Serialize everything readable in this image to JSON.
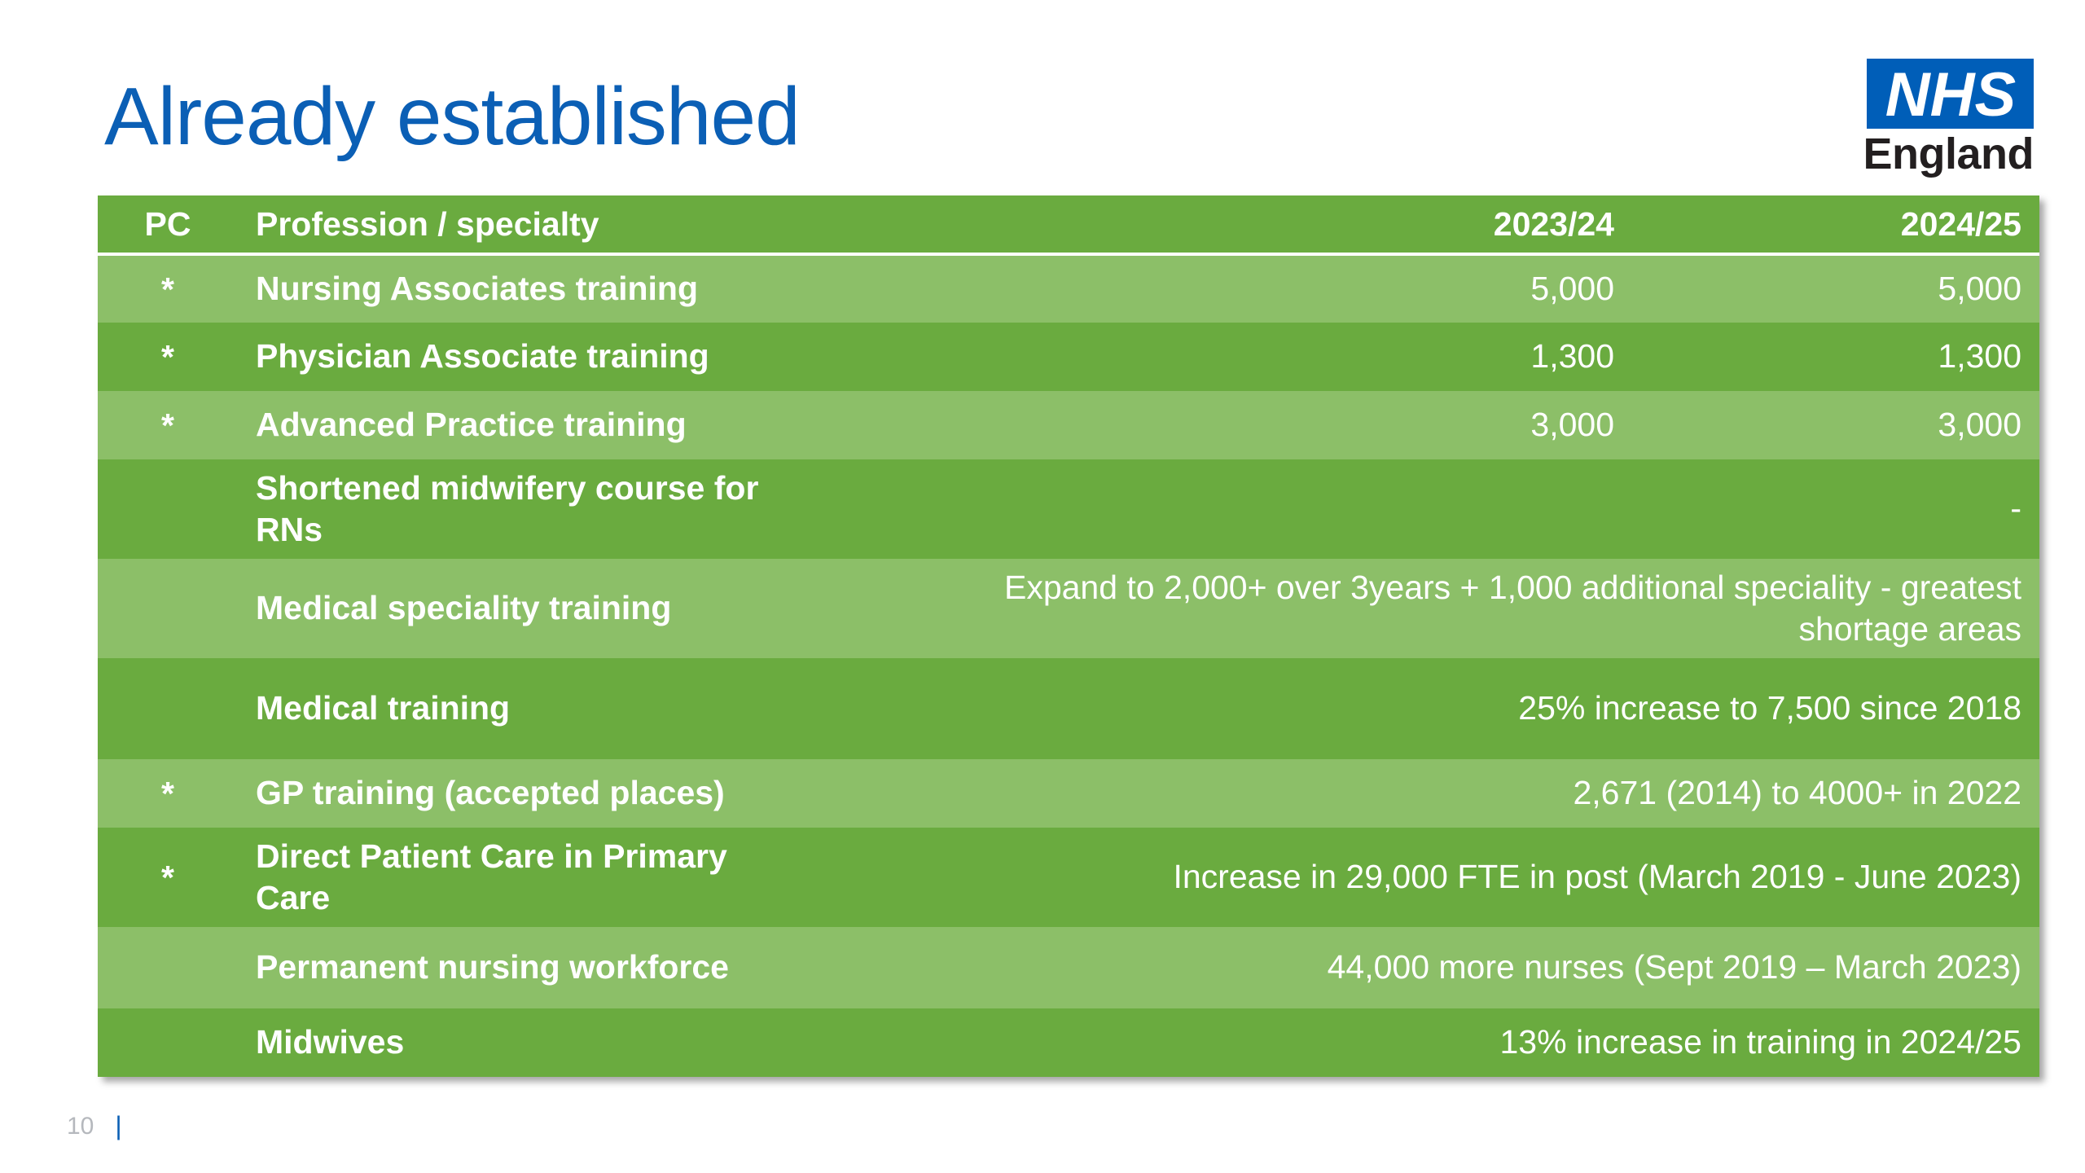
{
  "slide": {
    "title": "Already established",
    "page_number": "10",
    "separator": "|"
  },
  "logo": {
    "mark": "NHS",
    "sub": "England",
    "color": "#005eb8"
  },
  "table": {
    "headers": {
      "pc": "PC",
      "profession": "Profession / specialty",
      "col_2023": "2023/24",
      "col_2024": "2024/25"
    },
    "rows": [
      {
        "pc": "*",
        "profession": "Nursing Associates training",
        "y2023": "5,000",
        "y2024": "5,000"
      },
      {
        "pc": "*",
        "profession": "Physician Associate training",
        "y2023": "1,300",
        "y2024": "1,300"
      },
      {
        "pc": "*",
        "profession": "Advanced Practice training",
        "y2023": "3,000",
        "y2024": "3,000"
      },
      {
        "pc": "",
        "profession": "Shortened midwifery course for RNs",
        "value": "-"
      },
      {
        "pc": "",
        "profession": "Medical speciality training",
        "value": "Expand to 2,000+ over 3years + 1,000 additional speciality - greatest shortage areas"
      },
      {
        "pc": "",
        "profession": "Medical training",
        "value": "25% increase to 7,500 since 2018"
      },
      {
        "pc": "*",
        "profession": "GP training (accepted places)",
        "value": "2,671 (2014) to 4000+ in 2022"
      },
      {
        "pc": "*",
        "profession": "Direct Patient Care in Primary Care",
        "value": "Increase in 29,000 FTE in post (March 2019 - June 2023)"
      },
      {
        "pc": "",
        "profession": "Permanent nursing workforce",
        "value": "44,000 more nurses (Sept 2019 – March 2023)"
      },
      {
        "pc": "",
        "profession": "Midwives",
        "value": "13% increase in training in 2024/25"
      }
    ],
    "colors": {
      "dark_row": "#6aab3f",
      "light_row": "#8cbf68",
      "title": "#0b5fb5"
    }
  }
}
